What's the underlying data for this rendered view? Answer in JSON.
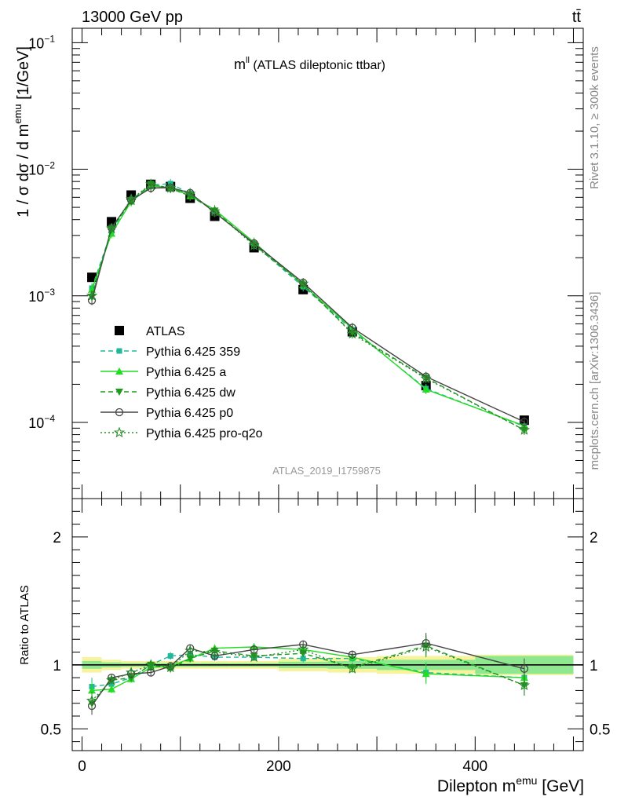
{
  "header": {
    "left": "13000 GeV pp",
    "right": "tt̄",
    "side_top": "Rivet 3.1.10, ≥ 300k events",
    "side_bottom": "mcplots.cern.ch [arXiv:1306.3436]",
    "plot_title": "m",
    "plot_title_sup": "ll",
    "plot_title_rest": " (ATLAS dileptonic ttbar)",
    "analysis_id": "ATLAS_2019_I1759875"
  },
  "chart_data": [
    {
      "type": "line",
      "panel": "main",
      "yscale": "log",
      "xlim": [
        -10,
        510
      ],
      "ylim": [
        2.5e-05,
        0.13
      ],
      "ylabel": "1 / σ  dσ / d m",
      "ylabel_sup": "emu",
      "ylabel_unit": " [1/GeV]",
      "ytick_labels": [
        "10",
        "10",
        "10",
        "10"
      ],
      "ytick_exps": [
        "−4",
        "−3",
        "−2",
        "−1"
      ],
      "x": [
        10,
        30,
        50,
        70,
        90,
        110,
        135,
        175,
        225,
        275,
        350,
        450
      ],
      "data_band_edges": [
        0,
        20,
        40,
        60,
        80,
        100,
        120,
        150,
        200,
        250,
        300,
        400,
        500
      ],
      "series": [
        {
          "name": "ATLAS",
          "style": "data",
          "color": "#000000",
          "values": [
            0.0014,
            0.00385,
            0.00625,
            0.0076,
            0.0073,
            0.0059,
            0.00425,
            0.0024,
            0.00112,
            0.00052,
            0.000195,
            0.000104
          ]
        },
        {
          "name": "Pythia 6.425 359",
          "style": "dashed-square",
          "color": "#1fb89a",
          "values": [
            0.00115,
            0.00325,
            0.00575,
            0.0075,
            0.0077,
            0.0064,
            0.00465,
            0.00255,
            0.00118,
            0.00054,
            0.000185,
            9.3e-05
          ]
        },
        {
          "name": "Pythia 6.425 a",
          "style": "solid-triangle",
          "color": "#22dd22",
          "values": [
            0.00112,
            0.0031,
            0.00555,
            0.00735,
            0.0072,
            0.00615,
            0.0048,
            0.00265,
            0.00122,
            0.00055,
            0.000182,
            9.4e-05
          ]
        },
        {
          "name": "Pythia 6.425 dw",
          "style": "dashed-triangle-down",
          "color": "#1f9b1f",
          "values": [
            0.00098,
            0.0034,
            0.0056,
            0.00765,
            0.00705,
            0.00615,
            0.0047,
            0.00255,
            0.00122,
            0.00051,
            0.000225,
            8.7e-05
          ]
        },
        {
          "name": "Pythia 6.425 p0",
          "style": "solid-circle",
          "color": "#444444",
          "values": [
            0.00092,
            0.00345,
            0.0057,
            0.0071,
            0.00715,
            0.0065,
            0.00455,
            0.0026,
            0.00127,
            0.00056,
            0.00023,
            0.000101
          ]
        },
        {
          "name": "Pythia 6.425 pro-q2o",
          "style": "dotted-star",
          "color": "#2a8a2a",
          "values": [
            0.001,
            0.0034,
            0.0058,
            0.0076,
            0.0071,
            0.0064,
            0.00465,
            0.0025,
            0.00125,
            0.0005,
            0.000222,
            8.7e-05
          ]
        }
      ]
    },
    {
      "type": "line",
      "panel": "ratio",
      "xlim": [
        -10,
        510
      ],
      "ylim": [
        0.33,
        2.3
      ],
      "ylabel": "Ratio to ATLAS",
      "xlabel": "Dilepton m",
      "xlabel_sup": "emu",
      "xlabel_unit": " [GeV]",
      "xtick_labels": [
        "0",
        "200",
        "400"
      ],
      "xtick_values": [
        0,
        200,
        400
      ],
      "ytick_labels": [
        "0.5",
        "1",
        "2"
      ],
      "ytick_values": [
        0.5,
        1,
        2
      ],
      "band_yellow_halfwidth": [
        0.06,
        0.04,
        0.03,
        0.03,
        0.03,
        0.03,
        0.03,
        0.03,
        0.05,
        0.06,
        0.07,
        0.08
      ],
      "band_green_halfwidth": [
        0.03,
        0.02,
        0.015,
        0.015,
        0.015,
        0.015,
        0.015,
        0.015,
        0.025,
        0.03,
        0.04,
        0.07
      ],
      "series": [
        {
          "name": "Pythia 6.425 359",
          "values": [
            0.83,
            0.85,
            0.9,
            1.0,
            1.07,
            1.08,
            1.06,
            1.06,
            1.05,
            1.05,
            0.94,
            0.9
          ]
        },
        {
          "name": "Pythia 6.425 a",
          "values": [
            0.8,
            0.81,
            0.89,
            0.98,
            0.99,
            1.05,
            1.13,
            1.14,
            1.12,
            1.06,
            0.93,
            0.9
          ]
        },
        {
          "name": "Pythia 6.425 dw",
          "values": [
            0.7,
            0.88,
            0.9,
            1.0,
            0.97,
            1.05,
            1.11,
            1.07,
            1.09,
            0.98,
            1.15,
            0.84
          ]
        },
        {
          "name": "Pythia 6.425 p0",
          "values": [
            0.68,
            0.9,
            0.93,
            0.94,
            0.99,
            1.13,
            1.07,
            1.12,
            1.16,
            1.08,
            1.17,
            0.97
          ]
        },
        {
          "name": "Pythia 6.425 pro-q2o",
          "values": [
            0.72,
            0.88,
            0.94,
            1.0,
            0.98,
            1.11,
            1.1,
            1.06,
            1.12,
            0.97,
            1.14,
            0.84
          ]
        }
      ]
    }
  ]
}
